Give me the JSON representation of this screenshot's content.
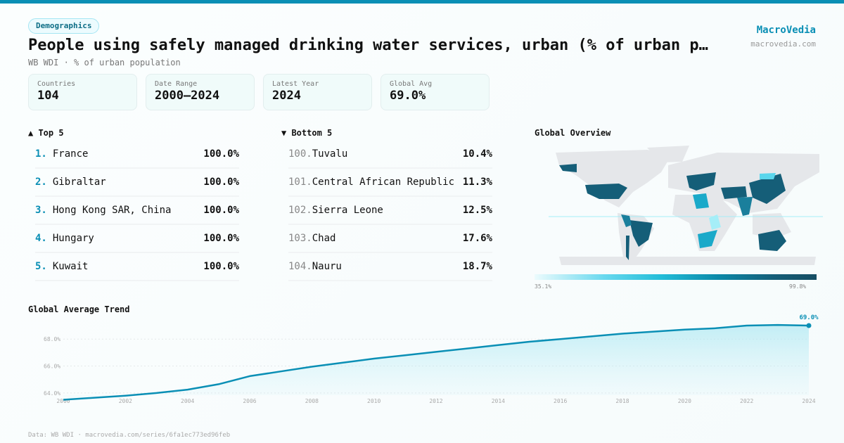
{
  "header": {
    "category": "Demographics",
    "title": "People using safely managed drinking water services, urban (% of urban population)",
    "subtitle": "WB WDI · % of urban population",
    "brand": "MacroVedia",
    "brand_url": "macrovedia.com"
  },
  "stats": [
    {
      "label": "Countries",
      "value": "104"
    },
    {
      "label": "Date Range",
      "value": "2000–2024"
    },
    {
      "label": "Latest Year",
      "value": "2024"
    },
    {
      "label": "Global Avg",
      "value": "69.0%"
    }
  ],
  "top": {
    "title": "▲ Top 5",
    "items": [
      {
        "rank": "1.",
        "name": "France",
        "value": "100.0%"
      },
      {
        "rank": "2.",
        "name": "Gibraltar",
        "value": "100.0%"
      },
      {
        "rank": "3.",
        "name": "Hong Kong SAR, China",
        "value": "100.0%"
      },
      {
        "rank": "4.",
        "name": "Hungary",
        "value": "100.0%"
      },
      {
        "rank": "5.",
        "name": "Kuwait",
        "value": "100.0%"
      }
    ]
  },
  "bottom": {
    "title": "▼ Bottom 5",
    "items": [
      {
        "rank": "100.",
        "name": "Tuvalu",
        "value": "10.4%"
      },
      {
        "rank": "101.",
        "name": "Central African Republic",
        "value": "11.3%"
      },
      {
        "rank": "102.",
        "name": "Sierra Leone",
        "value": "12.5%"
      },
      {
        "rank": "103.",
        "name": "Chad",
        "value": "17.6%"
      },
      {
        "rank": "104.",
        "name": "Nauru",
        "value": "18.7%"
      }
    ]
  },
  "map": {
    "title": "Global Overview",
    "scale_min": "35.1%",
    "scale_max": "99.8%",
    "colors": {
      "land": "#e5e7ea",
      "low": "#a5eef8",
      "mid": "#1aa9c9",
      "high": "#155e78"
    }
  },
  "chart_data": {
    "type": "area",
    "title": "Global Average Trend",
    "x": [
      2000,
      2001,
      2002,
      2003,
      2004,
      2005,
      2006,
      2007,
      2008,
      2009,
      2010,
      2011,
      2012,
      2013,
      2014,
      2015,
      2016,
      2017,
      2018,
      2019,
      2020,
      2021,
      2022,
      2023,
      2024
    ],
    "values": [
      63.5,
      63.65,
      63.8,
      64.0,
      64.25,
      64.65,
      65.25,
      65.6,
      65.95,
      66.25,
      66.55,
      66.8,
      67.05,
      67.3,
      67.55,
      67.8,
      68.0,
      68.2,
      68.4,
      68.55,
      68.7,
      68.8,
      69.0,
      69.05,
      69.0
    ],
    "yticks": [
      "64.0%",
      "66.0%",
      "68.0%"
    ],
    "ytick_values": [
      64,
      66,
      68
    ],
    "xticks": [
      "2000",
      "2002",
      "2004",
      "2006",
      "2008",
      "2010",
      "2012",
      "2014",
      "2016",
      "2018",
      "2020",
      "2022",
      "2024"
    ],
    "ylim": [
      62.9,
      70.2
    ],
    "last_label": "69.0%",
    "grid": true,
    "color": "#0a8fb5"
  },
  "footer": "Data: WB WDI · macrovedia.com/series/6fa1ec773ed96feb"
}
